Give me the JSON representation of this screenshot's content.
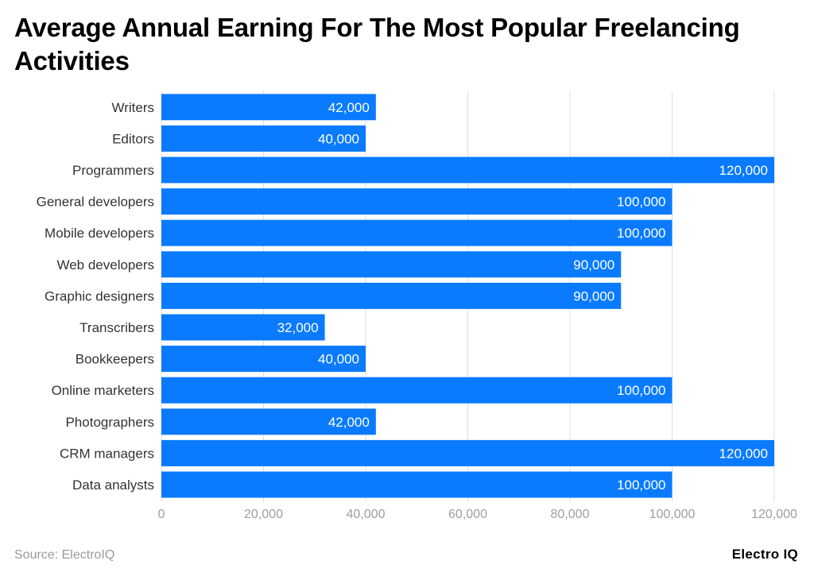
{
  "title": "Average Annual Earning For The Most Popular Freelancing Activities",
  "source": "Source: ElectroIQ",
  "brand": "Electro IQ",
  "colors": {
    "bar": "#0a7bff",
    "grid": "#dddddd",
    "label_text": "#ffffff",
    "category_text": "#333333",
    "tick_text": "#9e9e9e"
  },
  "chart_data": {
    "type": "bar",
    "orientation": "horizontal",
    "categories": [
      "Writers",
      "Editors",
      "Programmers",
      "General developers",
      "Mobile developers",
      "Web developers",
      "Graphic designers",
      "Transcribers",
      "Bookkeepers",
      "Online marketers",
      "Photographers",
      "CRM managers",
      "Data analysts"
    ],
    "values": [
      42000,
      40000,
      120000,
      100000,
      100000,
      90000,
      90000,
      32000,
      40000,
      100000,
      42000,
      120000,
      100000
    ],
    "value_labels": [
      "42,000",
      "40,000",
      "120,000",
      "100,000",
      "100,000",
      "90,000",
      "90,000",
      "32,000",
      "40,000",
      "100,000",
      "42,000",
      "120,000",
      "100,000"
    ],
    "xlim": [
      0,
      120000
    ],
    "xticks": [
      0,
      20000,
      40000,
      60000,
      80000,
      100000,
      120000
    ],
    "xtick_labels": [
      "0",
      "20,000",
      "40,000",
      "60,000",
      "80,000",
      "100,000",
      "120,000"
    ],
    "grid": true,
    "legend": false,
    "xlabel": "",
    "ylabel": ""
  }
}
